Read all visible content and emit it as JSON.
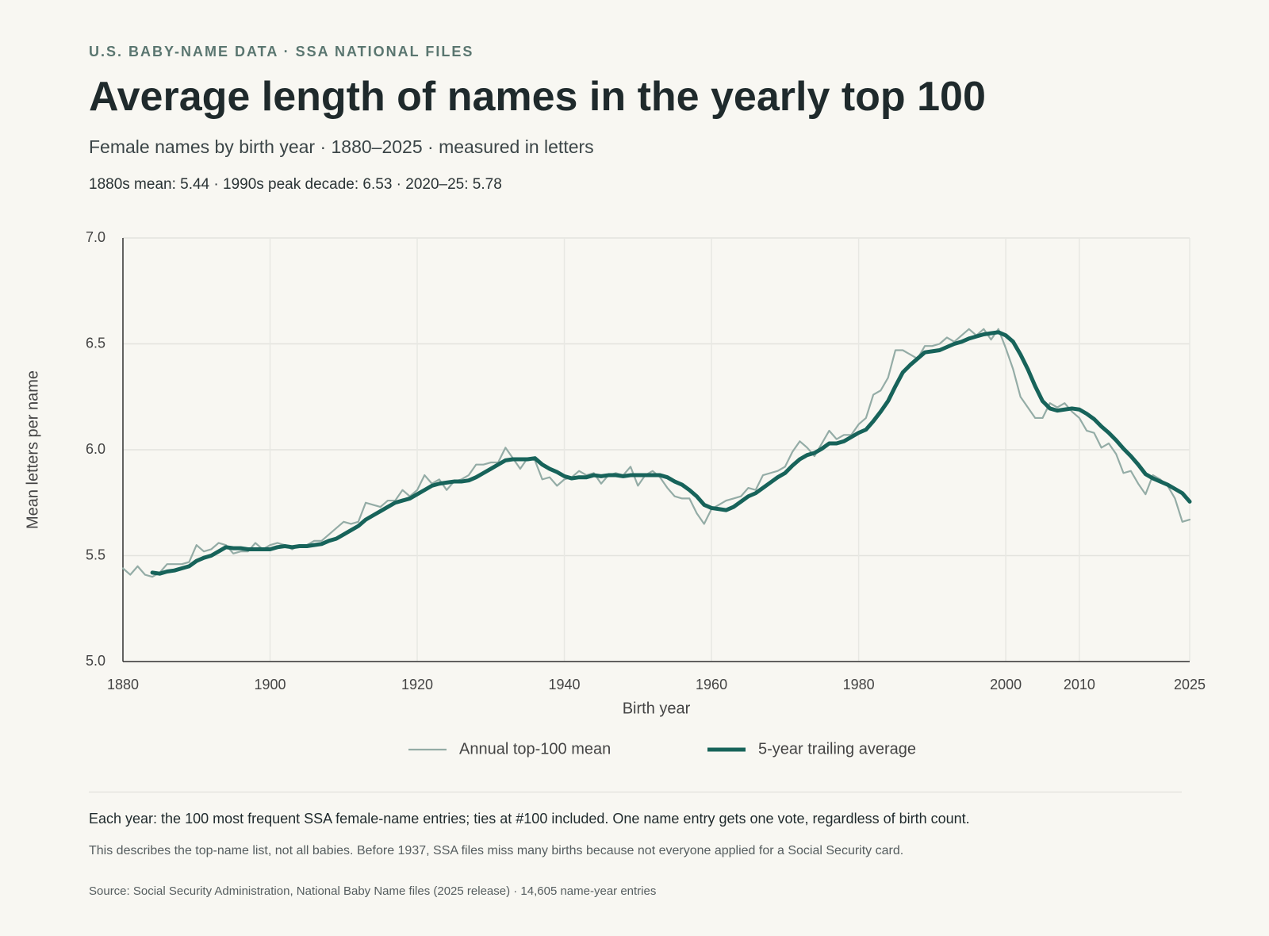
{
  "eyebrow": "U.S. BABY-NAME DATA · SSA NATIONAL FILES",
  "chart_data": {
    "type": "line",
    "title": "Average length of names in the yearly top 100",
    "subtitle": "Female names by birth year · 1880–2025 · measured in letters",
    "stats": "1880s mean: 5.44 · 1990s peak decade: 6.53 · 2020–25: 5.78",
    "xlabel": "Birth year",
    "ylabel": "Mean letters per name",
    "x": [
      1880,
      1881,
      1882,
      1883,
      1884,
      1885,
      1886,
      1887,
      1888,
      1889,
      1890,
      1891,
      1892,
      1893,
      1894,
      1895,
      1896,
      1897,
      1898,
      1899,
      1900,
      1901,
      1902,
      1903,
      1904,
      1905,
      1906,
      1907,
      1908,
      1909,
      1910,
      1911,
      1912,
      1913,
      1914,
      1915,
      1916,
      1917,
      1918,
      1919,
      1920,
      1921,
      1922,
      1923,
      1924,
      1925,
      1926,
      1927,
      1928,
      1929,
      1930,
      1931,
      1932,
      1933,
      1934,
      1935,
      1936,
      1937,
      1938,
      1939,
      1940,
      1941,
      1942,
      1943,
      1944,
      1945,
      1946,
      1947,
      1948,
      1949,
      1950,
      1951,
      1952,
      1953,
      1954,
      1955,
      1956,
      1957,
      1958,
      1959,
      1960,
      1961,
      1962,
      1963,
      1964,
      1965,
      1966,
      1967,
      1968,
      1969,
      1970,
      1971,
      1972,
      1973,
      1974,
      1975,
      1976,
      1977,
      1978,
      1979,
      1980,
      1981,
      1982,
      1983,
      1984,
      1985,
      1986,
      1987,
      1988,
      1989,
      1990,
      1991,
      1992,
      1993,
      1994,
      1995,
      1996,
      1997,
      1998,
      1999,
      2000,
      2001,
      2002,
      2003,
      2004,
      2005,
      2006,
      2007,
      2008,
      2009,
      2010,
      2011,
      2012,
      2013,
      2014,
      2015,
      2016,
      2017,
      2018,
      2019,
      2020,
      2021,
      2022,
      2023,
      2024,
      2025
    ],
    "series": [
      {
        "name": "Annual top-100 mean",
        "color": "#94aca6",
        "width": 2.2,
        "values": [
          5.44,
          5.41,
          5.45,
          5.41,
          5.4,
          5.42,
          5.46,
          5.46,
          5.46,
          5.47,
          5.55,
          5.52,
          5.53,
          5.56,
          5.55,
          5.51,
          5.52,
          5.52,
          5.56,
          5.53,
          5.55,
          5.56,
          5.55,
          5.53,
          5.55,
          5.55,
          5.57,
          5.57,
          5.6,
          5.63,
          5.66,
          5.65,
          5.66,
          5.75,
          5.74,
          5.73,
          5.76,
          5.76,
          5.81,
          5.78,
          5.81,
          5.88,
          5.84,
          5.86,
          5.81,
          5.85,
          5.86,
          5.88,
          5.93,
          5.93,
          5.94,
          5.94,
          6.01,
          5.96,
          5.91,
          5.96,
          5.95,
          5.86,
          5.87,
          5.83,
          5.86,
          5.87,
          5.9,
          5.88,
          5.89,
          5.84,
          5.88,
          5.89,
          5.88,
          5.92,
          5.83,
          5.88,
          5.9,
          5.87,
          5.82,
          5.78,
          5.77,
          5.77,
          5.7,
          5.65,
          5.72,
          5.74,
          5.76,
          5.77,
          5.78,
          5.82,
          5.81,
          5.88,
          5.89,
          5.9,
          5.92,
          5.99,
          6.04,
          6.01,
          5.97,
          6.03,
          6.09,
          6.05,
          6.07,
          6.07,
          6.12,
          6.15,
          6.26,
          6.28,
          6.34,
          6.47,
          6.47,
          6.45,
          6.43,
          6.49,
          6.49,
          6.5,
          6.53,
          6.51,
          6.54,
          6.57,
          6.54,
          6.57,
          6.52,
          6.57,
          6.48,
          6.38,
          6.25,
          6.2,
          6.15,
          6.15,
          6.22,
          6.2,
          6.22,
          6.18,
          6.15,
          6.09,
          6.08,
          6.01,
          6.03,
          5.98,
          5.89,
          5.9,
          5.84,
          5.79,
          5.88,
          5.86,
          5.83,
          5.77,
          5.66,
          5.67
        ]
      },
      {
        "name": "5-year trailing average",
        "color": "#17635a",
        "width": 5,
        "values": [
          null,
          null,
          null,
          null,
          5.42,
          5.415,
          5.425,
          5.43,
          5.44,
          5.45,
          5.475,
          5.49,
          5.5,
          5.52,
          5.54,
          5.535,
          5.535,
          5.53,
          5.53,
          5.53,
          5.53,
          5.54,
          5.545,
          5.54,
          5.545,
          5.545,
          5.55,
          5.555,
          5.57,
          5.58,
          5.6,
          5.62,
          5.64,
          5.67,
          5.69,
          5.71,
          5.73,
          5.75,
          5.76,
          5.77,
          5.79,
          5.81,
          5.83,
          5.84,
          5.845,
          5.85,
          5.85,
          5.855,
          5.87,
          5.89,
          5.91,
          5.93,
          5.95,
          5.955,
          5.955,
          5.955,
          5.96,
          5.93,
          5.91,
          5.895,
          5.875,
          5.865,
          5.87,
          5.87,
          5.88,
          5.875,
          5.88,
          5.88,
          5.875,
          5.88,
          5.88,
          5.88,
          5.88,
          5.88,
          5.87,
          5.85,
          5.835,
          5.81,
          5.78,
          5.74,
          5.725,
          5.72,
          5.715,
          5.73,
          5.755,
          5.78,
          5.795,
          5.82,
          5.845,
          5.87,
          5.89,
          5.925,
          5.955,
          5.975,
          5.985,
          6.005,
          6.03,
          6.03,
          6.04,
          6.06,
          6.08,
          6.095,
          6.135,
          6.18,
          6.23,
          6.3,
          6.365,
          6.4,
          6.43,
          6.46,
          6.465,
          6.47,
          6.485,
          6.5,
          6.51,
          6.525,
          6.535,
          6.545,
          6.55,
          6.555,
          6.54,
          6.51,
          6.45,
          6.38,
          6.3,
          6.23,
          6.195,
          6.185,
          6.19,
          6.195,
          6.19,
          6.17,
          6.145,
          6.11,
          6.08,
          6.045,
          6.005,
          5.97,
          5.93,
          5.885,
          5.865,
          5.85,
          5.835,
          5.815,
          5.795,
          5.755
        ]
      }
    ],
    "xlim": [
      1880,
      2025
    ],
    "xticks": [
      1880,
      1900,
      1920,
      1940,
      1960,
      1980,
      2000,
      2010,
      2025
    ],
    "ylim": [
      5,
      7
    ],
    "yticks": [
      {
        "value": 5,
        "label": "5.0"
      },
      5.5,
      {
        "value": 6,
        "label": "6.0"
      },
      6.5,
      {
        "value": 7,
        "label": "7.0"
      }
    ],
    "grid": true,
    "legend": "bottom"
  },
  "notes": [
    "Each year: the 100 most frequent SSA female-name entries; ties at #100 included. One name entry gets one vote, regardless of birth count.",
    "This describes the top-name list, not all babies. Before 1937, SSA files miss many births because not everyone applied for a Social Security card."
  ],
  "source": "Source: Social Security Administration, National Baby Name files (2025 release) · 14,605 name-year entries"
}
